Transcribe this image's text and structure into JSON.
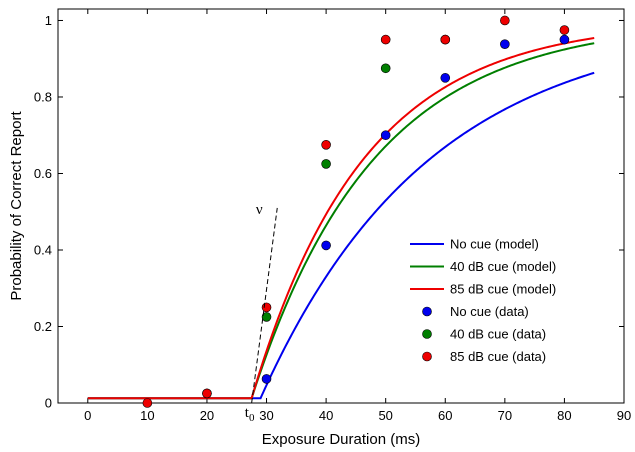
{
  "chart_data": {
    "type": "line",
    "xlabel": "Exposure Duration (ms)",
    "ylabel": "Probability of Correct Report",
    "xlim": [
      -5,
      90
    ],
    "ylim": [
      0,
      1.03
    ],
    "xticks": [
      0,
      10,
      20,
      30,
      40,
      50,
      60,
      70,
      80,
      90
    ],
    "xtick_labels": [
      "0",
      "10",
      "20",
      "30",
      "40",
      "50",
      "60",
      "70",
      "80",
      "90"
    ],
    "yticks": [
      0,
      0.2,
      0.4,
      0.6,
      0.8,
      1
    ],
    "ytick_labels": [
      "0",
      "0.2",
      "0.4",
      "0.6",
      "0.8",
      "1"
    ],
    "grid": false,
    "legend_position": "right",
    "annotations": {
      "t0_base": "t",
      "t0_sub": "0",
      "t0_x": 27.5,
      "nu": "ν",
      "tangent_start": [
        27.5,
        0.0
      ],
      "tangent_end": [
        31.8,
        0.51
      ]
    },
    "series": [
      {
        "name": "No cue (model)",
        "kind": "line",
        "color": "#0000ee",
        "t0": 29.0,
        "v": 0.0353,
        "floor": 0.0125,
        "x_end": 85
      },
      {
        "name": "40 dB cue (model)",
        "kind": "line",
        "color": "#007f00",
        "t0": 27.5,
        "v": 0.0489,
        "floor": 0.0125,
        "x_end": 85
      },
      {
        "name": "85 dB cue (model)",
        "kind": "line",
        "color": "#ee0000",
        "t0": 27.5,
        "v": 0.0534,
        "floor": 0.0125,
        "x_end": 85
      },
      {
        "name": "No cue (data)",
        "kind": "points",
        "color": "#0000ee",
        "x": [
          30,
          40,
          50,
          60,
          70,
          80
        ],
        "y": [
          0.063,
          0.412,
          0.7,
          0.85,
          0.938,
          0.95
        ]
      },
      {
        "name": "40 dB cue (data)",
        "kind": "points",
        "color": "#007f00",
        "x": [
          20,
          30,
          40,
          50,
          60
        ],
        "y": [
          0.025,
          0.225,
          0.625,
          0.875,
          0.95
        ]
      },
      {
        "name": "85 dB cue (data)",
        "kind": "points",
        "color": "#ee0000",
        "x": [
          10,
          20,
          30,
          40,
          50,
          60,
          70,
          80
        ],
        "y": [
          0.0,
          0.025,
          0.25,
          0.675,
          0.95,
          0.95,
          1.0,
          0.975
        ]
      }
    ]
  }
}
